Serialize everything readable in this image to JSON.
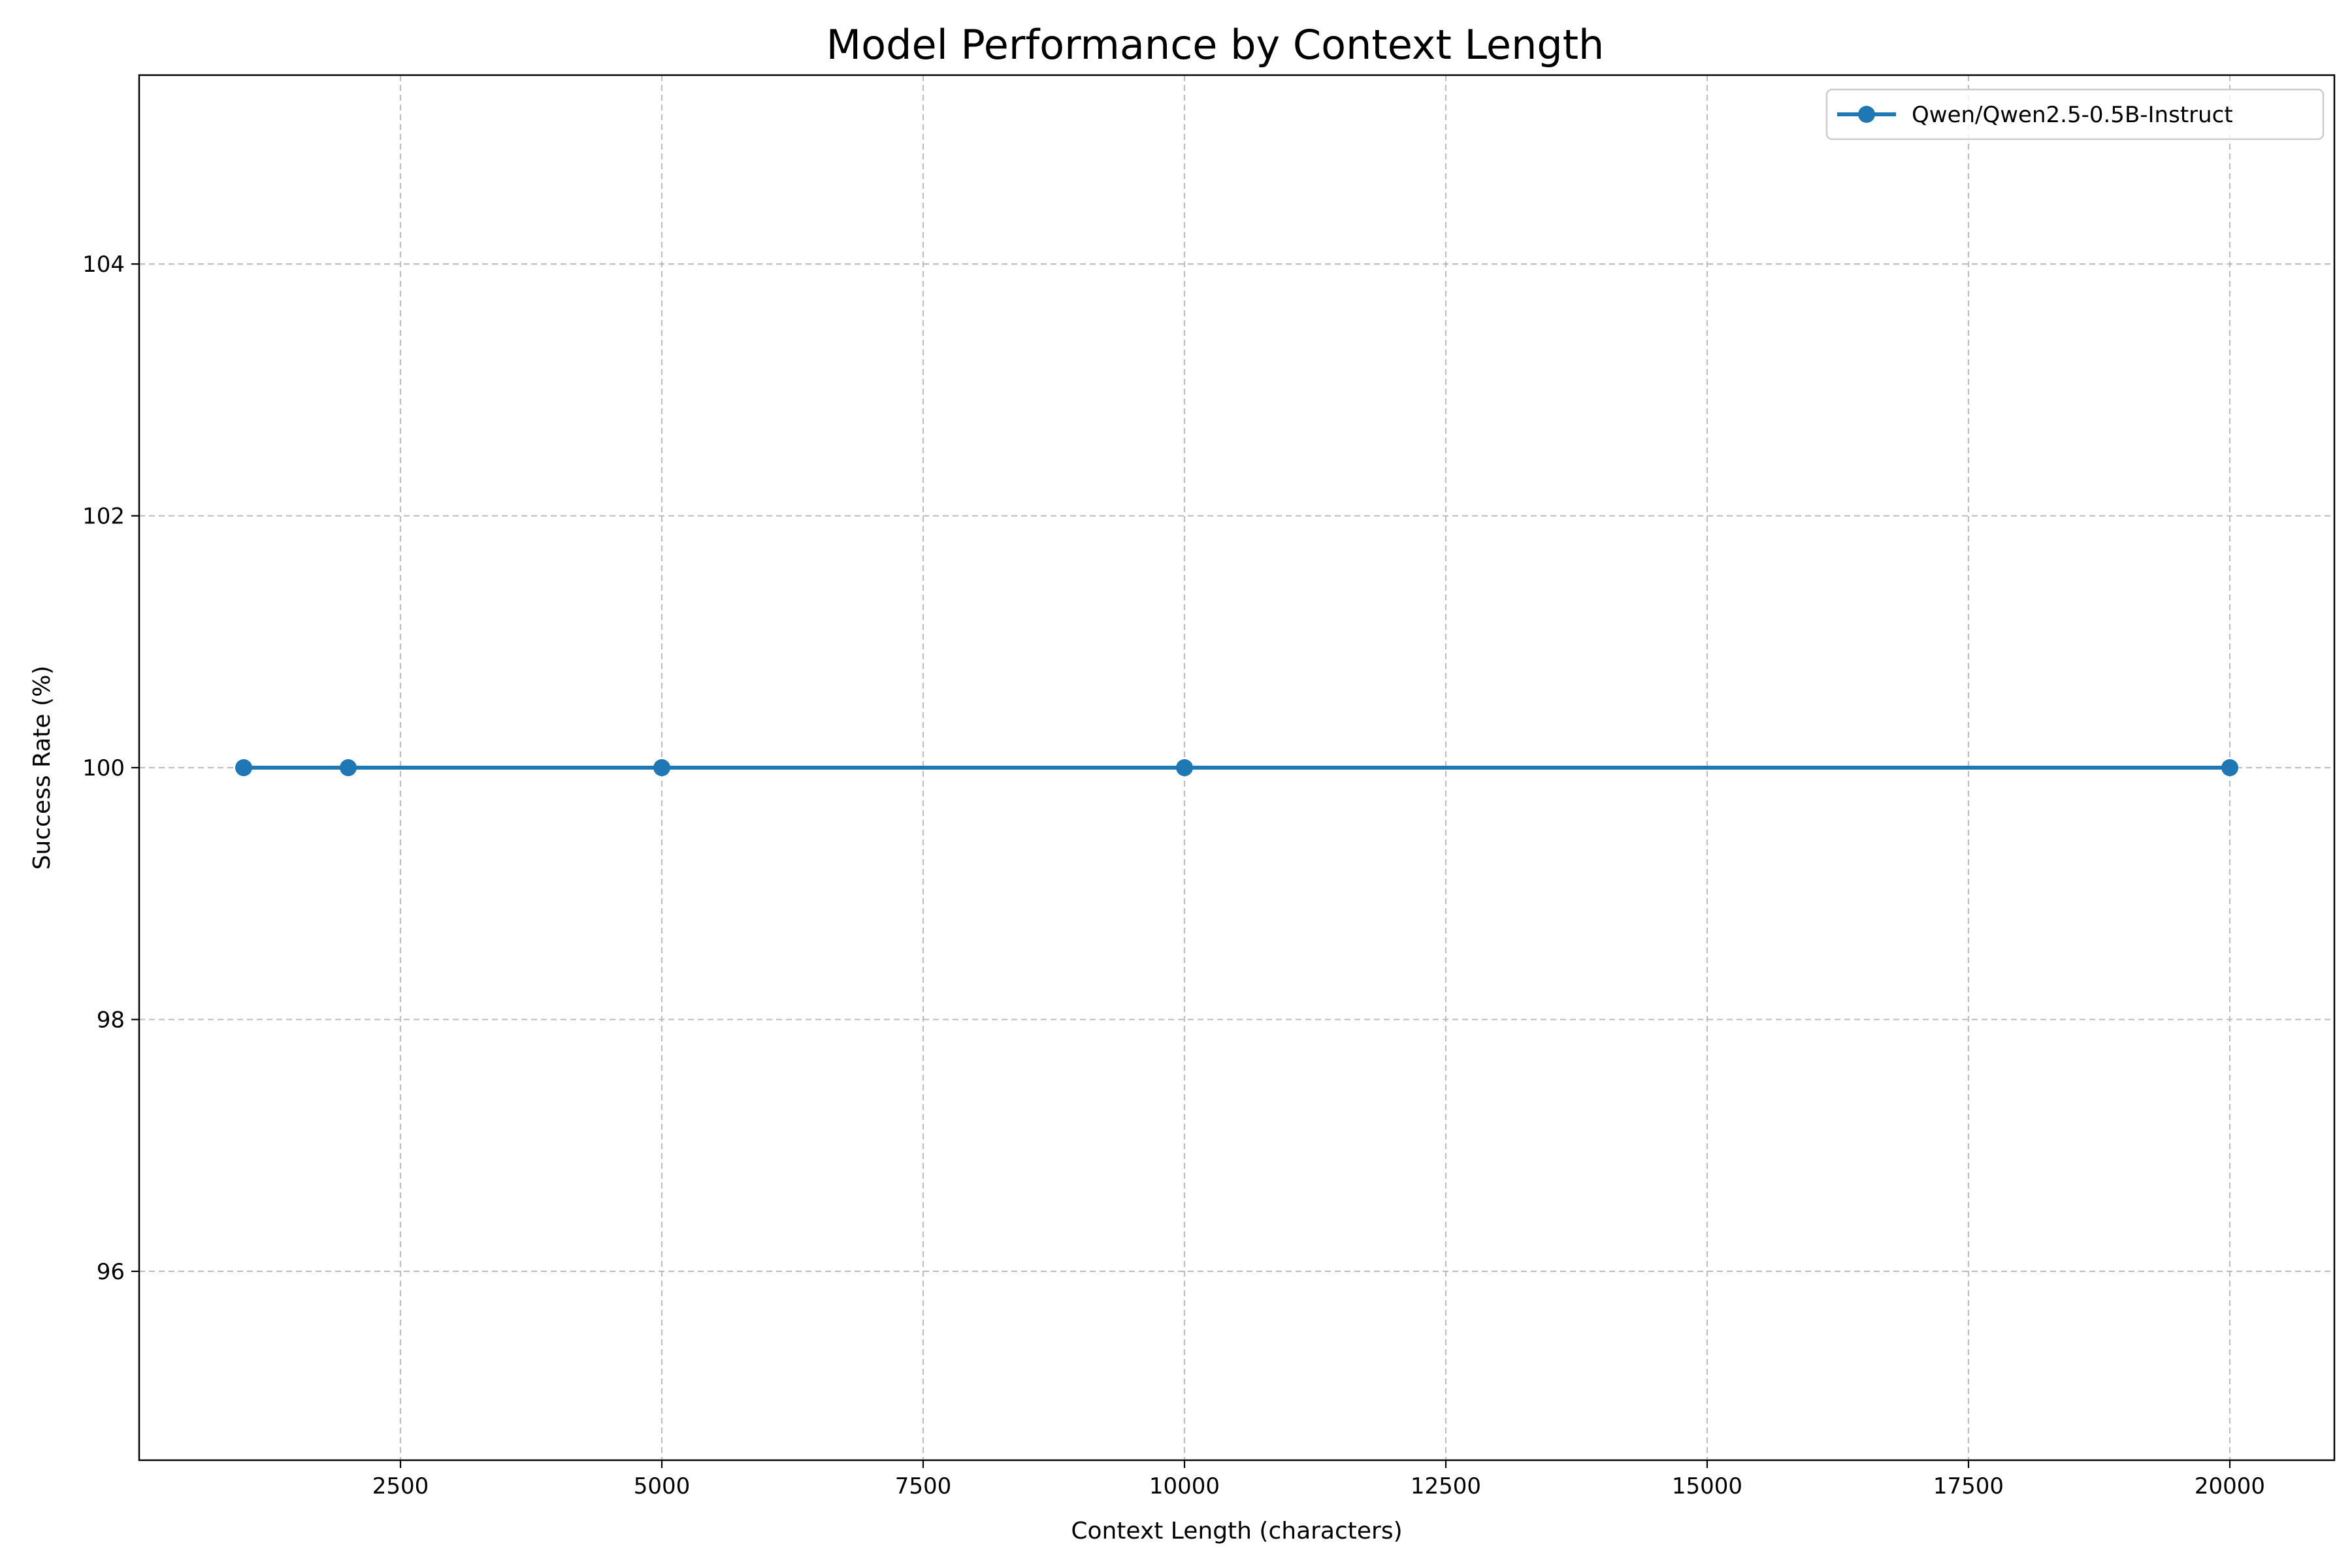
{
  "chart_data": {
    "type": "line",
    "title": "Model Performance by Context Length",
    "xlabel": "Context Length (characters)",
    "ylabel": "Success Rate (%)",
    "xlim": [
      0,
      21000
    ],
    "ylim": [
      94.5,
      105.5
    ],
    "xticks": [
      2500,
      5000,
      7500,
      10000,
      12500,
      15000,
      17500,
      20000
    ],
    "yticks": [
      96,
      98,
      100,
      102,
      104
    ],
    "grid": true,
    "legend_position": "top-right",
    "series": [
      {
        "name": "Qwen/Qwen2.5-0.5B-Instruct",
        "color": "#1f77b4",
        "marker": "circle",
        "x": [
          1000,
          2000,
          5000,
          10000,
          20000
        ],
        "y": [
          100,
          100,
          100,
          100,
          100
        ]
      }
    ]
  }
}
